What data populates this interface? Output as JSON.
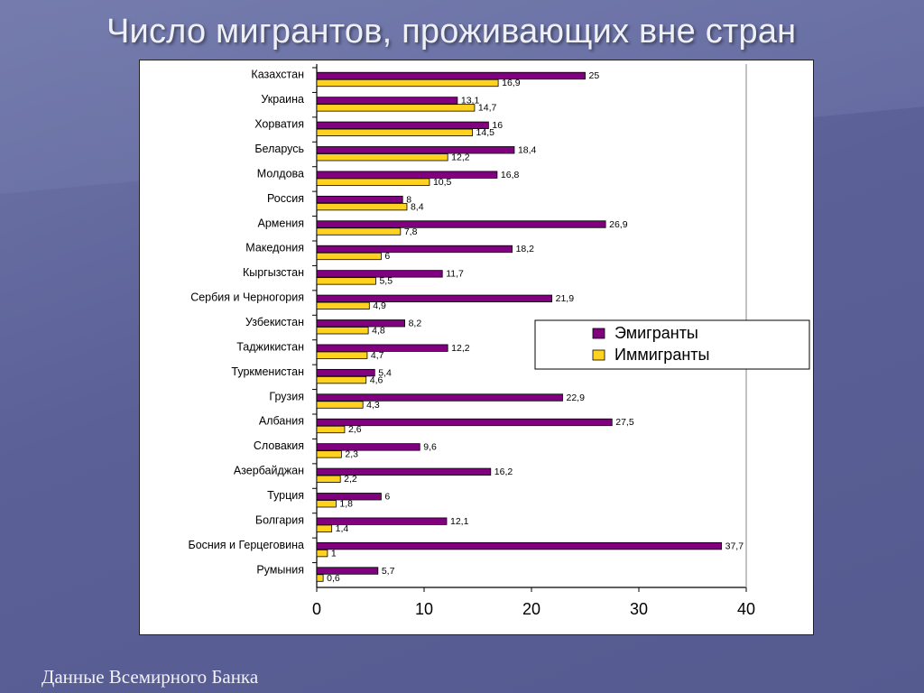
{
  "slide": {
    "title": "Число мигрантов, проживающих вне стран",
    "source": "Данные Всемирного Банка"
  },
  "chart_data": {
    "type": "bar",
    "orientation": "horizontal",
    "title": "",
    "xlabel": "",
    "ylabel": "",
    "xlim": [
      0,
      40
    ],
    "xticks": [
      0,
      10,
      20,
      30,
      40
    ],
    "grid": false,
    "legend_position": "right",
    "categories": [
      "Казахстан",
      "Украина",
      "Хорватия",
      "Беларусь",
      "Молдова",
      "Россия",
      "Армения",
      "Македония",
      "Кыргызстан",
      "Сербия и Черногория",
      "Узбекистан",
      "Таджикистан",
      "Туркменистан",
      "Грузия",
      "Албания",
      "Словакия",
      "Азербайджан",
      "Турция",
      "Болгария",
      "Босния и Герцеговина",
      "Румыния"
    ],
    "series": [
      {
        "name": "Эмигранты",
        "color": "#800080",
        "values": [
          25,
          13.1,
          16,
          18.4,
          16.8,
          8,
          26.9,
          18.2,
          11.7,
          21.9,
          8.2,
          12.2,
          5.4,
          22.9,
          27.5,
          9.6,
          16.2,
          6,
          12.1,
          37.7,
          5.7
        ],
        "labels": [
          "25",
          "13,1",
          "16",
          "18,4",
          "16,8",
          "8",
          "26,9",
          "18,2",
          "11,7",
          "21,9",
          "8,2",
          "12,2",
          "5,4",
          "22,9",
          "27,5",
          "9,6",
          "16,2",
          "6",
          "12,1",
          "37,7",
          "5,7"
        ]
      },
      {
        "name": "Иммигранты",
        "color": "#ffd21f",
        "values": [
          16.9,
          14.7,
          14.5,
          12.2,
          10.5,
          8.4,
          7.8,
          6,
          5.5,
          4.9,
          4.8,
          4.7,
          4.6,
          4.3,
          2.6,
          2.3,
          2.2,
          1.8,
          1.4,
          1,
          0.6
        ],
        "labels": [
          "16,9",
          "14,7",
          "14,5",
          "12,2",
          "10,5",
          "8,4",
          "7,8",
          "6",
          "5,5",
          "4,9",
          "4,8",
          "4,7",
          "4,6",
          "4,3",
          "2,6",
          "2,3",
          "2,2",
          "1,8",
          "1,4",
          "1",
          "0,6"
        ]
      }
    ]
  }
}
